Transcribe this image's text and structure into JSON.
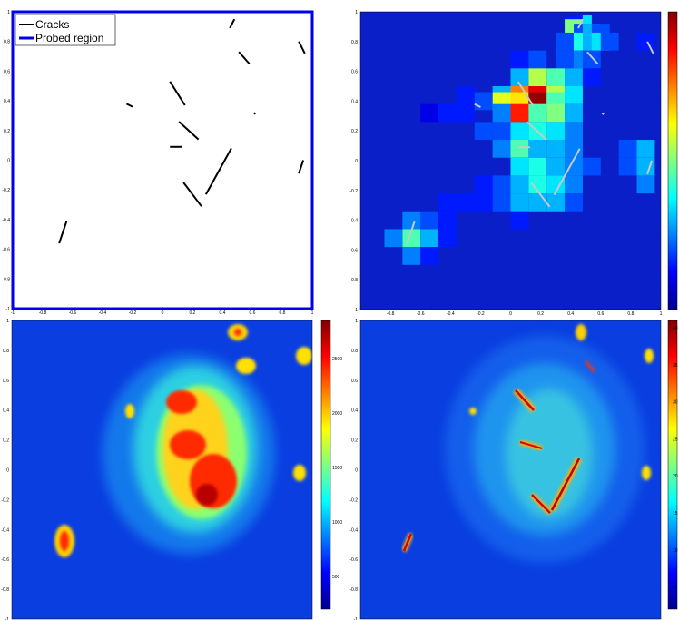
{
  "chart_data": [
    {
      "panel": "cracks",
      "type": "line",
      "xlim": [
        -1,
        1
      ],
      "ylim": [
        -1,
        1
      ],
      "xticks": [
        "-1",
        "-0.8",
        "-0.6",
        "-0.4",
        "-0.2",
        "0",
        "0.2",
        "0.4",
        "0.6",
        "0.8",
        "1"
      ],
      "yticks": [
        "1",
        "0.8",
        "0.6",
        "0.4",
        "0.2",
        "0",
        "-0.2",
        "-0.4",
        "-0.6",
        "-0.8",
        "-1"
      ],
      "legend": {
        "position": "top-left",
        "entries": [
          "Cracks",
          "Probed region"
        ]
      },
      "series_colors": {
        "cracks": "#000000",
        "probed": "#0000ee"
      },
      "probed_region": [
        [
          -1,
          -1
        ],
        [
          1,
          -1
        ],
        [
          1,
          1
        ],
        [
          -1,
          1
        ],
        [
          -1,
          -1
        ]
      ],
      "cracks": [
        [
          [
            0.48,
            0.95
          ],
          [
            0.45,
            0.89
          ]
        ],
        [
          [
            0.91,
            0.8
          ],
          [
            0.95,
            0.72
          ]
        ],
        [
          [
            0.51,
            0.73
          ],
          [
            0.58,
            0.65
          ]
        ],
        [
          [
            0.05,
            0.53
          ],
          [
            0.15,
            0.37
          ]
        ],
        [
          [
            -0.24,
            0.38
          ],
          [
            -0.2,
            0.36
          ]
        ],
        [
          [
            0.61,
            0.32
          ],
          [
            0.62,
            0.31
          ]
        ],
        [
          [
            0.11,
            0.26
          ],
          [
            0.24,
            0.14
          ]
        ],
        [
          [
            0.05,
            0.09
          ],
          [
            0.13,
            0.09
          ]
        ],
        [
          [
            0.46,
            0.08
          ],
          [
            0.29,
            -0.23
          ]
        ],
        [
          [
            0.94,
            0.0
          ],
          [
            0.91,
            -0.09
          ]
        ],
        [
          [
            0.14,
            -0.15
          ],
          [
            0.26,
            -0.31
          ]
        ],
        [
          [
            -0.64,
            -0.41
          ],
          [
            -0.69,
            -0.56
          ]
        ]
      ]
    },
    {
      "panel": "grid",
      "type": "heatmap",
      "xlim": [
        -1,
        1
      ],
      "ylim": [
        -1,
        1
      ],
      "xticks": [
        "-0.8",
        "-0.6",
        "-0.4",
        "-0.2",
        "0",
        "0.2",
        "0.4",
        "0.6",
        "0.8",
        "1"
      ],
      "yticks": [
        "1",
        "0.8",
        "0.6",
        "0.4",
        "0.2",
        "0",
        "-0.2",
        "-0.4",
        "-0.6",
        "-0.8",
        "-1"
      ],
      "colormap": "jet",
      "background": 0.05,
      "cells_note_grid": "20x20, values 0-1",
      "cells": [
        [
          0.48,
          0.92,
          0.35
        ],
        [
          0.42,
          0.92,
          0.15
        ],
        [
          0.42,
          0.89,
          0.5
        ],
        [
          0.48,
          0.86,
          0.2
        ],
        [
          0.54,
          0.86,
          0.3
        ],
        [
          0.6,
          0.86,
          0.2
        ],
        [
          0.36,
          0.8,
          0.2
        ],
        [
          0.48,
          0.8,
          0.4
        ],
        [
          0.54,
          0.8,
          0.3
        ],
        [
          0.6,
          0.8,
          0.35
        ],
        [
          0.66,
          0.8,
          0.2
        ],
        [
          0.9,
          0.8,
          0.15
        ],
        [
          0.06,
          0.68,
          0.15
        ],
        [
          0.18,
          0.68,
          0.2
        ],
        [
          0.36,
          0.68,
          0.2
        ],
        [
          0.48,
          0.68,
          0.25
        ],
        [
          0.54,
          0.68,
          0.2
        ],
        [
          0.06,
          0.56,
          0.3
        ],
        [
          0.18,
          0.56,
          0.55
        ],
        [
          0.3,
          0.56,
          0.45
        ],
        [
          0.42,
          0.56,
          0.3
        ],
        [
          0.54,
          0.56,
          0.15
        ],
        [
          0.06,
          0.44,
          0.75
        ],
        [
          0.18,
          0.44,
          0.9
        ],
        [
          0.3,
          0.44,
          0.55
        ],
        [
          0.42,
          0.44,
          0.35
        ],
        [
          -0.06,
          0.44,
          0.3
        ],
        [
          -0.3,
          0.44,
          0.15
        ],
        [
          0.06,
          0.4,
          0.65
        ],
        [
          0.18,
          0.4,
          0.98
        ],
        [
          0.3,
          0.4,
          0.45
        ],
        [
          -0.06,
          0.4,
          0.6
        ],
        [
          -0.18,
          0.4,
          0.2
        ],
        [
          0.06,
          0.32,
          0.85
        ],
        [
          0.18,
          0.32,
          0.45
        ],
        [
          0.3,
          0.32,
          0.5
        ],
        [
          0.42,
          0.32,
          0.3
        ],
        [
          -0.06,
          0.32,
          0.25
        ],
        [
          -0.3,
          0.32,
          0.15
        ],
        [
          -0.42,
          0.32,
          0.15
        ],
        [
          -0.54,
          0.32,
          0.1
        ],
        [
          0.06,
          0.2,
          0.35
        ],
        [
          0.18,
          0.2,
          0.4
        ],
        [
          0.3,
          0.2,
          0.35
        ],
        [
          0.42,
          0.2,
          0.25
        ],
        [
          -0.06,
          0.2,
          0.2
        ],
        [
          -0.18,
          0.2,
          0.2
        ],
        [
          0.06,
          0.08,
          0.45
        ],
        [
          0.18,
          0.08,
          0.3
        ],
        [
          0.3,
          0.08,
          0.3
        ],
        [
          0.42,
          0.08,
          0.25
        ],
        [
          -0.06,
          0.08,
          0.25
        ],
        [
          0.9,
          0.08,
          0.3
        ],
        [
          0.78,
          0.08,
          0.2
        ],
        [
          0.06,
          -0.04,
          0.35
        ],
        [
          0.18,
          -0.04,
          0.4
        ],
        [
          0.3,
          -0.04,
          0.3
        ],
        [
          0.42,
          -0.04,
          0.25
        ],
        [
          0.54,
          -0.04,
          0.2
        ],
        [
          0.78,
          -0.04,
          0.2
        ],
        [
          0.9,
          -0.04,
          0.3
        ],
        [
          0.06,
          -0.16,
          0.3
        ],
        [
          0.18,
          -0.16,
          0.4
        ],
        [
          0.3,
          -0.16,
          0.35
        ],
        [
          0.42,
          -0.16,
          0.25
        ],
        [
          -0.06,
          -0.16,
          0.2
        ],
        [
          -0.18,
          -0.16,
          0.15
        ],
        [
          0.9,
          -0.16,
          0.25
        ],
        [
          0.06,
          -0.28,
          0.3
        ],
        [
          0.18,
          -0.28,
          0.3
        ],
        [
          0.3,
          -0.28,
          0.3
        ],
        [
          0.42,
          -0.28,
          0.2
        ],
        [
          -0.06,
          -0.28,
          0.2
        ],
        [
          -0.18,
          -0.28,
          0.15
        ],
        [
          -0.3,
          -0.28,
          0.15
        ],
        [
          -0.42,
          -0.28,
          0.15
        ],
        [
          -0.54,
          -0.4,
          0.2
        ],
        [
          -0.66,
          -0.4,
          0.25
        ],
        [
          -0.42,
          -0.4,
          0.15
        ],
        [
          0.06,
          -0.4,
          0.15
        ],
        [
          -0.66,
          -0.52,
          0.45
        ],
        [
          -0.78,
          -0.52,
          0.25
        ],
        [
          -0.54,
          -0.52,
          0.3
        ],
        [
          -0.42,
          -0.52,
          0.15
        ],
        [
          -0.66,
          -0.64,
          0.25
        ],
        [
          -0.54,
          -0.64,
          0.15
        ]
      ]
    },
    {
      "panel": "imaging-1",
      "type": "heatmap",
      "colormap": "jet",
      "xticks": [
        "-1",
        "-0.8",
        "-0.6",
        "-0.4",
        "-0.2",
        "0",
        "0.2",
        "0.4",
        "0.6",
        "0.8",
        "1"
      ],
      "yticks": [
        "1",
        "0.8",
        "0.6",
        "0.4",
        "0.2",
        "0",
        "-0.2",
        "-0.4",
        "-0.6",
        "-0.8",
        "-1"
      ],
      "colorbar_ticks": [
        "2500",
        "2000",
        "1500",
        "1000",
        "500"
      ],
      "colorbar_range": [
        200,
        2850
      ]
    },
    {
      "panel": "imaging-2",
      "type": "heatmap",
      "colormap": "jet",
      "xticks": [
        "-1",
        "-0.8",
        "-0.6",
        "-0.4",
        "-0.2",
        "0",
        "0.2",
        "0.4",
        "0.6",
        "0.8",
        "1"
      ],
      "yticks": [
        "1",
        "0.8",
        "0.6",
        "0.4",
        "0.2",
        "0",
        "-0.2",
        "-0.4",
        "-0.6",
        "-0.8",
        "-1"
      ],
      "colorbar_ticks": [
        "40",
        "35",
        "30",
        "25",
        "20",
        "15",
        "10",
        "5"
      ],
      "colorbar_range": [
        2,
        41
      ]
    }
  ]
}
